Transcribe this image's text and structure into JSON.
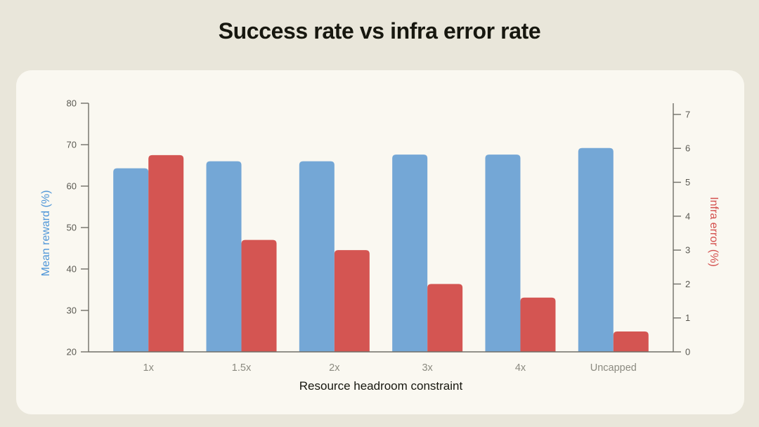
{
  "page": {
    "title": "Success rate vs infra error rate"
  },
  "chart_data": {
    "type": "bar",
    "title": "Success rate vs infra error rate",
    "xlabel": "Resource headroom constraint",
    "categories": [
      "1x",
      "1.5x",
      "2x",
      "3x",
      "4x",
      "Uncapped"
    ],
    "series": [
      {
        "name": "Mean reward (%)",
        "axis": "left",
        "color": "#74a7d6",
        "values": [
          64.3,
          66.0,
          66.0,
          67.6,
          67.6,
          69.2
        ]
      },
      {
        "name": "Infra error (%)",
        "axis": "right",
        "color": "#d45552",
        "values": [
          5.8,
          3.3,
          3.0,
          2.0,
          1.6,
          0.6
        ]
      }
    ],
    "left_axis": {
      "label": "Mean reward (%)",
      "ticks": [
        20,
        30,
        40,
        50,
        60,
        70,
        80
      ],
      "ylim": [
        20,
        80
      ],
      "title_color": "#4f96d8"
    },
    "right_axis": {
      "label": "Infra error (%)",
      "ticks": [
        0,
        1,
        2,
        3,
        4,
        5,
        6,
        7
      ],
      "ylim": [
        0,
        7.33
      ],
      "title_color": "#d4504e"
    },
    "grid": false,
    "legend": "none"
  },
  "colors": {
    "page_background": "#e9e6da",
    "panel_background": "#faf8f1",
    "spine": "#706f68",
    "y_tick_label": "#5a5952",
    "x_tick_label": "#8b8a80",
    "title_text": "#17170f"
  }
}
